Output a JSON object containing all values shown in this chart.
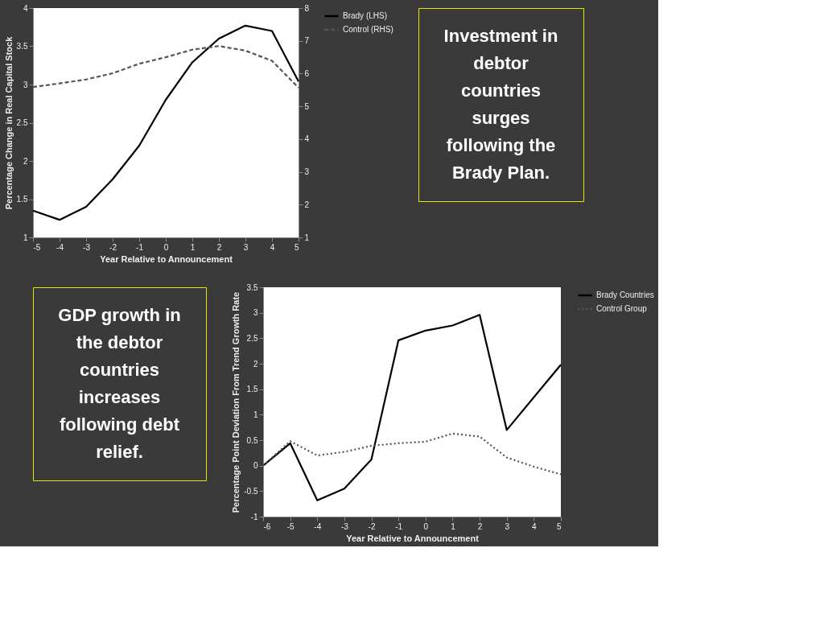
{
  "chart_data": [
    {
      "type": "line",
      "x": [
        -5,
        -4,
        -3,
        -2,
        -1,
        0,
        1,
        2,
        3,
        4,
        5
      ],
      "xlabel": "Year Relative to Announcement",
      "ylabel": "Percentage Change in Real Capital Stock",
      "xlim": [
        -5,
        5
      ],
      "xticks": [
        -5,
        -4,
        -3,
        -2,
        -1,
        0,
        1,
        2,
        3,
        4,
        5
      ],
      "ylim": [
        1,
        4
      ],
      "yticks": [
        1,
        1.5,
        2,
        2.5,
        3,
        3.5,
        4
      ],
      "y2lim": [
        1,
        8
      ],
      "y2ticks": [
        1,
        2,
        3,
        4,
        5,
        6,
        7,
        8
      ],
      "legend": "right",
      "marker": "none",
      "series": [
        {
          "name": "Brady (LHS)",
          "color": "#000000",
          "line_style": "solid",
          "values": [
            1.35,
            1.23,
            1.4,
            1.76,
            2.2,
            2.8,
            3.29,
            3.6,
            3.77,
            3.7,
            3.04
          ]
        },
        {
          "name": "Control (RHS)",
          "color": "#555555",
          "line_style": "dashed",
          "axis": "y2",
          "values": [
            5.59,
            5.7,
            5.82,
            6.01,
            6.3,
            6.5,
            6.73,
            6.84,
            6.7,
            6.39,
            5.57
          ]
        }
      ],
      "annotations": [
        "Investment in debtor countries surges following the Brady Plan."
      ]
    },
    {
      "type": "line",
      "x": [
        -6,
        -5,
        -4,
        -3,
        -2,
        -1,
        0,
        1,
        2,
        3,
        4,
        5
      ],
      "xlabel": "Year Relative to Announcement",
      "ylabel": "Percentage Point Deviation From Trend Growth Rate",
      "xlim": [
        -6,
        5
      ],
      "xticks": [
        -6,
        -5,
        -4,
        -3,
        -2,
        -1,
        0,
        1,
        2,
        3,
        4,
        5
      ],
      "ylim": [
        -1,
        3.5
      ],
      "yticks": [
        -1,
        -0.5,
        0,
        0.5,
        1,
        1.5,
        2,
        2.5,
        3,
        3.5
      ],
      "legend": "right",
      "marker": "none",
      "series": [
        {
          "name": "Brady Countries",
          "color": "#000000",
          "line_style": "solid",
          "values": [
            0,
            0.44,
            -0.68,
            -0.45,
            0.12,
            2.46,
            2.65,
            2.75,
            2.96,
            0.7,
            1.34,
            1.98
          ]
        },
        {
          "name": "Control Group",
          "color": "#555555",
          "line_style": "dotted",
          "values": [
            0,
            0.48,
            0.2,
            0.27,
            0.39,
            0.44,
            0.47,
            0.63,
            0.57,
            0.16,
            -0.02,
            -0.17
          ]
        }
      ],
      "annotations": [
        "GDP growth in the debtor countries increases following debt relief."
      ]
    }
  ]
}
